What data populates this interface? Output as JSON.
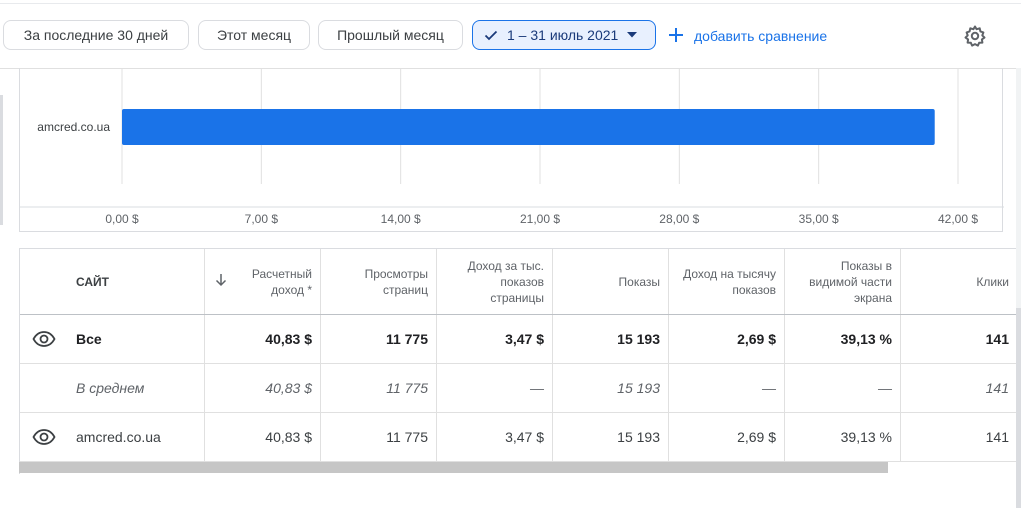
{
  "toolbar": {
    "chips": [
      "За последние 30 дней",
      "Этот месяц",
      "Прошлый месяц"
    ],
    "selected_range": "1 – 31 июль 2021",
    "add_comparison": "добавить сравнение"
  },
  "chart_data": {
    "type": "bar",
    "orientation": "horizontal",
    "categories": [
      "amcred.co.ua"
    ],
    "values": [
      40.83
    ],
    "xlim": [
      0,
      42
    ],
    "x_ticks": [
      "0,00 $",
      "7,00 $",
      "14,00 $",
      "21,00 $",
      "28,00 $",
      "35,00 $",
      "42,00 $"
    ],
    "x_tick_values": [
      0,
      7,
      14,
      21,
      28,
      35,
      42
    ],
    "bar_color": "#1a73e8",
    "grid": true
  },
  "table": {
    "headers": {
      "site": "САЙТ",
      "revenue": "Расчетный доход *",
      "pageviews": "Просмотры страниц",
      "rpm": "Доход за тыс. показов страницы",
      "impressions": "Показы",
      "impression_rpm": "Доход на тысячу показов",
      "viewability": "Показы в видимой части экрана",
      "clicks": "Клики"
    },
    "total": {
      "label": "Все",
      "revenue": "40,83 $",
      "pageviews": "11 775",
      "rpm": "3,47 $",
      "impressions": "15 193",
      "impression_rpm": "2,69 $",
      "viewability": "39,13 %",
      "clicks": "141"
    },
    "average": {
      "label": "В среднем",
      "revenue": "40,83 $",
      "pageviews": "11 775",
      "rpm": "—",
      "impressions": "15 193",
      "impression_rpm": "—",
      "viewability": "—",
      "clicks": "141"
    },
    "rows": [
      {
        "label": "amcred.co.ua",
        "revenue": "40,83 $",
        "pageviews": "11 775",
        "rpm": "3,47 $",
        "impressions": "15 193",
        "impression_rpm": "2,69 $",
        "viewability": "39,13 %",
        "clicks": "141"
      }
    ]
  },
  "colors": {
    "accent": "#1a73e8",
    "selected_chip_bg": "#e8f0fe"
  }
}
